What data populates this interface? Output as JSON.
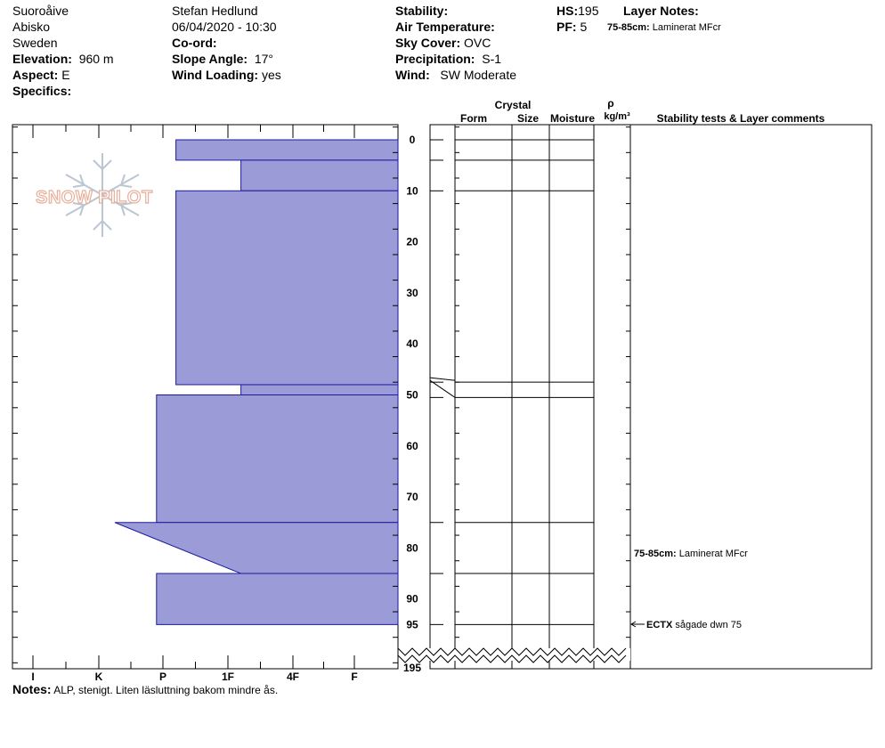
{
  "header": {
    "location": "Suoroåive",
    "area": "Abisko",
    "country": "Sweden",
    "elevation_label": "Elevation:",
    "elevation_value": "960 m",
    "aspect_label": "Aspect:",
    "aspect_value": "E",
    "specifics_label": "Specifics:",
    "observer": "Stefan Hedlund",
    "datetime": "06/04/2020 - 10:30",
    "coord_label": "Co-ord:",
    "slope_label": "Slope Angle:",
    "slope_value": "17°",
    "wind_loading_label": "Wind Loading:",
    "wind_loading_value": "yes",
    "stability_label": "Stability:",
    "air_temp_label": "Air Temperature:",
    "sky_label": "Sky Cover:",
    "sky_value": "OVC",
    "precip_label": "Precipitation:",
    "precip_value": "S-1",
    "wind_label": "Wind:",
    "wind_value": "SW Moderate",
    "hs_label": "HS:",
    "hs_value": "195",
    "pf_label": "PF:",
    "pf_value": "5",
    "layer_notes_label": "Layer Notes:",
    "layer_note_range": "75-85cm:",
    "layer_note_text": "Laminerat MFcr"
  },
  "columns": {
    "crystal": "Crystal",
    "form": "Form",
    "size": "Size",
    "moisture": "Moisture",
    "rho": "ρ",
    "density_unit": "kg/m³",
    "comments": "Stability tests & Layer comments"
  },
  "watermark": "SNOW PILOT",
  "hardness_labels": [
    "I",
    "K",
    "P",
    "1F",
    "4F",
    "F"
  ],
  "depth_labels": [
    "0",
    "10",
    "20",
    "30",
    "40",
    "50",
    "60",
    "70",
    "80",
    "90",
    "95",
    "195"
  ],
  "comments": [
    {
      "range": "75-85cm:",
      "text": "Laminerat MFcr",
      "depth": 81
    },
    {
      "test": "ECTX",
      "text": "sågade dwn 75",
      "depth": 95
    }
  ],
  "chart_data": {
    "type": "snow_profile",
    "total_depth_cm": 195,
    "depth_axis_max_displayed": 95,
    "hardness_scale": [
      "F",
      "4F",
      "1F",
      "P",
      "K",
      "I"
    ],
    "layers": [
      {
        "top": 0,
        "bottom": 4,
        "hardness_top": 3.8,
        "hardness_bottom": 3.8
      },
      {
        "top": 4,
        "bottom": 10,
        "hardness_top": 2.8,
        "hardness_bottom": 2.8
      },
      {
        "top": 10,
        "bottom": 48,
        "hardness_top": 3.8,
        "hardness_bottom": 3.8
      },
      {
        "top": 48,
        "bottom": 50,
        "hardness_top": 2.8,
        "hardness_bottom": 2.8
      },
      {
        "top": 50,
        "bottom": 75,
        "hardness_top": 4.1,
        "hardness_bottom": 4.1
      },
      {
        "top": 75,
        "bottom": 85,
        "hardness_top": 4.75,
        "hardness_bottom": 2.8
      },
      {
        "top": 85,
        "bottom": 95,
        "hardness_top": 4.1,
        "hardness_bottom": 4.1
      }
    ],
    "grid_boundaries": [
      0,
      4,
      10,
      47.5,
      50.5,
      75,
      85,
      95
    ]
  },
  "notes_label": "Notes:",
  "notes_text": "ALP, stenigt. Liten läsluttning bakom mindre ås."
}
